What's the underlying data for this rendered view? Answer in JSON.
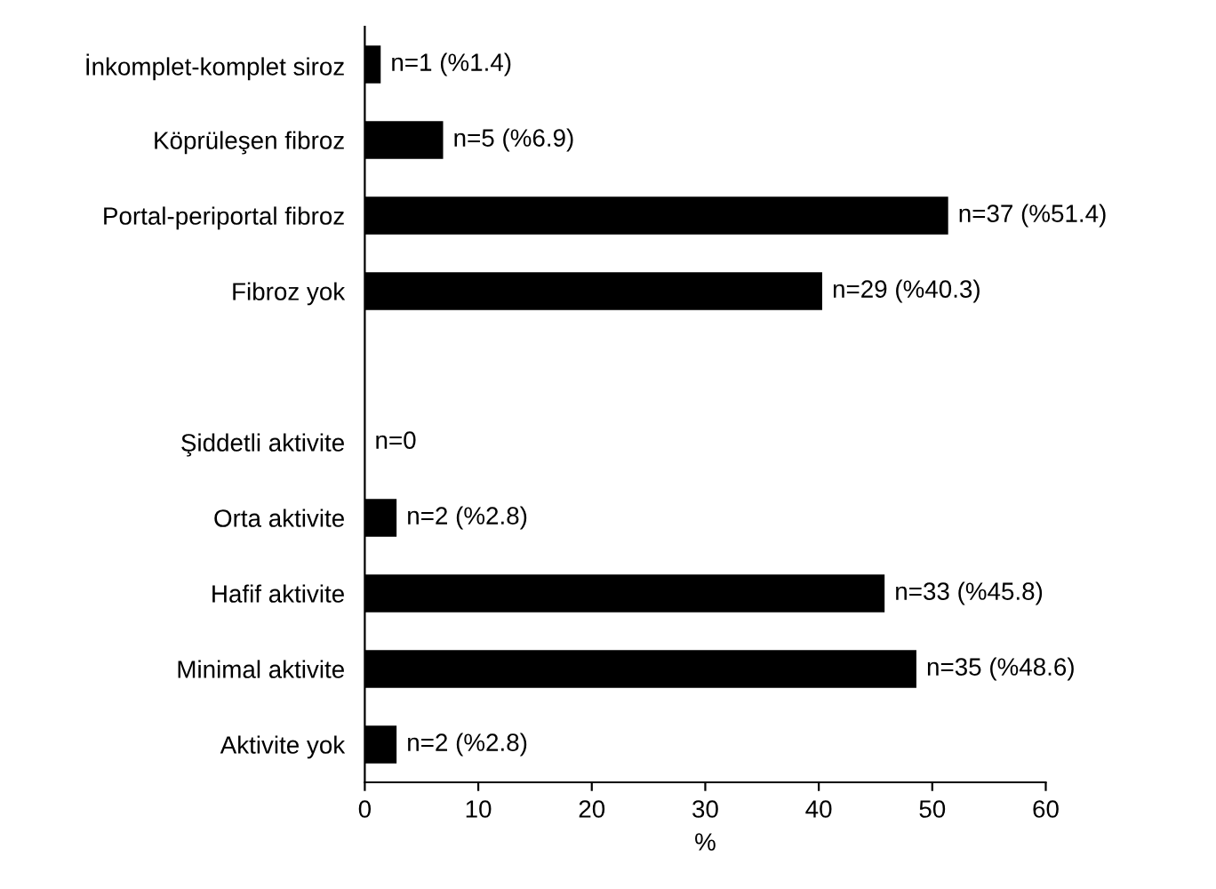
{
  "chart_data": {
    "type": "bar",
    "orientation": "horizontal",
    "xlabel": "%",
    "categories": [
      "İnkomplet-komplet siroz",
      "Köprüleşen fibroz",
      "Portal-periportal fibroz",
      "Fibroz yok",
      null,
      "Şiddetli aktivite",
      "Orta aktivite",
      "Hafif aktivite",
      "Minimal aktivite",
      "Aktivite yok"
    ],
    "values": [
      1.4,
      6.9,
      51.4,
      40.3,
      null,
      0,
      2.8,
      45.8,
      48.6,
      2.8
    ],
    "value_labels": [
      "n=1 (%1.4)",
      "n=5 (%6.9)",
      "n=37 (%51.4)",
      "n=29 (%40.3)",
      null,
      "n=0",
      "n=2 (%2.8)",
      "n=33 (%45.8)",
      "n=35 (%48.6)",
      "n=2 (%2.8)"
    ],
    "color": "#000000",
    "xlim": [
      0,
      60
    ],
    "xticks": [
      0,
      10,
      20,
      30,
      40,
      50,
      60
    ],
    "grid": false,
    "legend": false
  }
}
